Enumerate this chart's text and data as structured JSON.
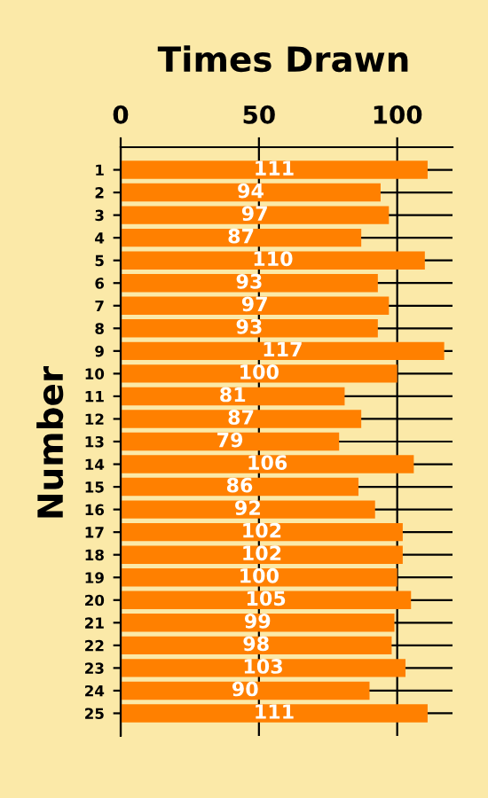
{
  "chart_data": {
    "type": "bar",
    "orientation": "horizontal",
    "title": "Times Drawn",
    "ylabel": "Number",
    "categories": [
      "1",
      "2",
      "3",
      "4",
      "5",
      "6",
      "7",
      "8",
      "9",
      "10",
      "11",
      "12",
      "13",
      "14",
      "15",
      "16",
      "17",
      "18",
      "19",
      "20",
      "21",
      "22",
      "23",
      "24",
      "25"
    ],
    "values": [
      111,
      94,
      97,
      87,
      110,
      93,
      97,
      93,
      117,
      100,
      81,
      87,
      79,
      106,
      86,
      92,
      102,
      102,
      100,
      105,
      99,
      98,
      103,
      90,
      111
    ],
    "color": "#ff8000",
    "xlim": [
      0,
      120
    ],
    "xticks": [
      0,
      50,
      100
    ],
    "grid": true,
    "data_labels": true
  }
}
